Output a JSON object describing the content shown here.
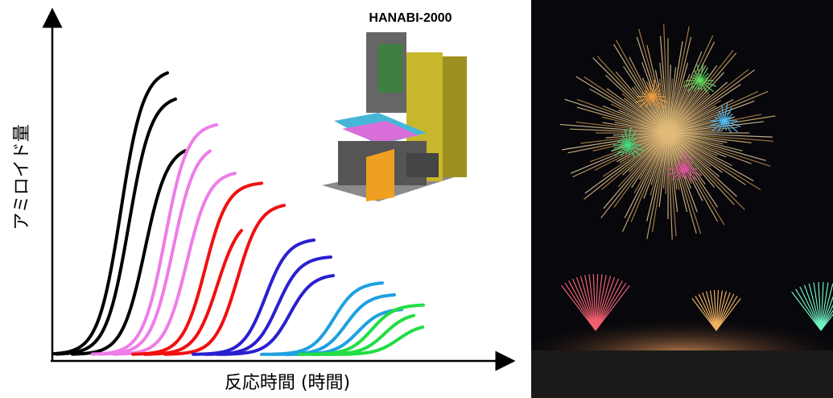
{
  "figure": {
    "y_axis_label": "アミロイド量",
    "x_axis_label": "反応時間 (時間)",
    "device_label": "HANABI-2000"
  }
}
